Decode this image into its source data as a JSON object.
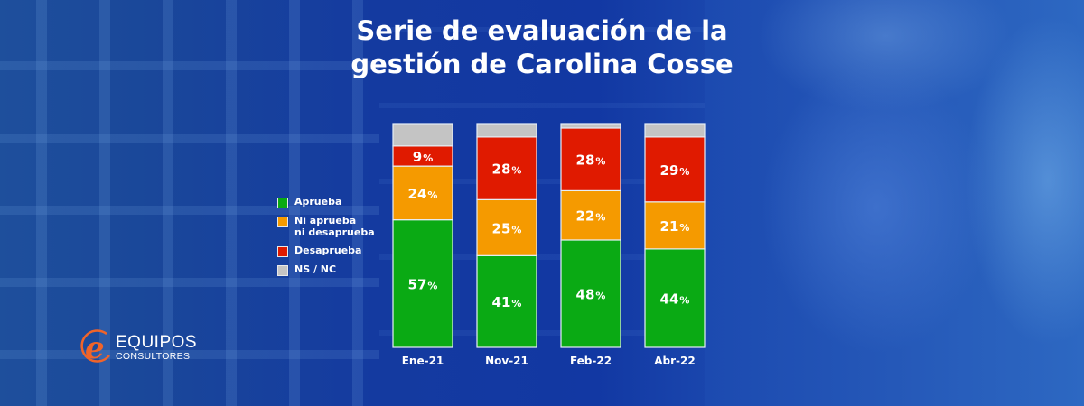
{
  "title_lines": [
    "Serie de evaluación de la",
    "gestión de Carolina Cosse"
  ],
  "logo": {
    "line1": "EQUIPOS",
    "line2": "CONSULTORES",
    "mark_letter": "e",
    "mark_color": "#f0642a"
  },
  "legend": [
    {
      "label": "Aprueba",
      "color": "#0aaa14"
    },
    {
      "label": "Ni aprueba\nni desaprueba",
      "color": "#f59a00"
    },
    {
      "label": "Desaprueba",
      "color": "#e01a00"
    },
    {
      "label": "NS / NC",
      "color": "#c4c4c4"
    }
  ],
  "chart_data": {
    "type": "bar",
    "stacked": true,
    "title": "Serie de evaluación de la gestión de Carolina Cosse",
    "xlabel": "",
    "ylabel": "",
    "ylim": [
      0,
      100
    ],
    "grid": false,
    "legend_position": "left",
    "categories": [
      "Ene-21",
      "Nov-21",
      "Feb-22",
      "Abr-22"
    ],
    "series": [
      {
        "name": "Aprueba",
        "color": "#0aaa14",
        "values": [
          57,
          41,
          48,
          44
        ],
        "labels": [
          "57%",
          "41%",
          "48%",
          "44%"
        ]
      },
      {
        "name": "Ni aprueba ni desaprueba",
        "color": "#f59a00",
        "values": [
          24,
          25,
          22,
          21
        ],
        "labels": [
          "24%",
          "25%",
          "22%",
          "21%"
        ]
      },
      {
        "name": "Desaprueba",
        "color": "#e01a00",
        "values": [
          9,
          28,
          28,
          29
        ],
        "labels": [
          "9%",
          "28%",
          "28%",
          "29%"
        ]
      },
      {
        "name": "NS / NC",
        "color": "#c4c4c4",
        "values": [
          10,
          6,
          2,
          6
        ],
        "labels": [
          "",
          "",
          "",
          ""
        ]
      }
    ]
  }
}
